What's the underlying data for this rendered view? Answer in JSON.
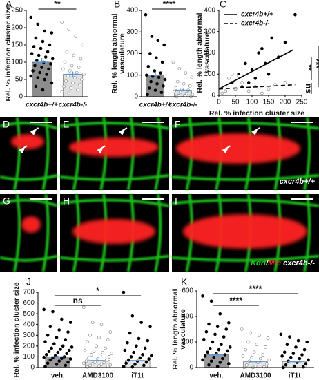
{
  "chart_data": [
    {
      "type": "bar",
      "panel": "A",
      "ylabel": [
        "Rel. % infection cluster size"
      ],
      "categories": [
        "cxcr4b+/+",
        "cxcr4b-/-"
      ],
      "values": [
        100,
        65
      ],
      "errors": [
        12,
        8
      ],
      "colors": [
        "#8c8c8c",
        "#e0e0e0"
      ],
      "point_fills": [
        "#000000",
        "#ffffff"
      ],
      "points": [
        [
          230,
          210,
          190,
          185,
          170,
          160,
          150,
          145,
          140,
          130,
          125,
          120,
          115,
          110,
          105,
          100,
          95,
          90,
          85,
          80,
          75,
          70,
          65,
          60,
          55,
          50,
          40,
          30,
          20
        ],
        [
          215,
          195,
          175,
          150,
          130,
          120,
          110,
          100,
          90,
          85,
          80,
          75,
          70,
          65,
          60,
          55,
          50,
          45,
          40,
          35,
          30,
          25,
          20,
          15,
          10
        ]
      ],
      "ylim": [
        0,
        250
      ],
      "yticks": [
        0,
        50,
        100,
        150,
        200,
        250
      ],
      "annotations": [
        {
          "text": "**",
          "between": [
            0,
            1
          ]
        }
      ]
    },
    {
      "type": "bar",
      "panel": "B",
      "ylabel": [
        "Rel. % length abnormal",
        "vasculature"
      ],
      "categories": [
        "cxcr4b+/+",
        "cxcr4b-/-"
      ],
      "values": [
        100,
        30
      ],
      "errors": [
        15,
        5
      ],
      "colors": [
        "#8c8c8c",
        "#e0e0e0"
      ],
      "point_fills": [
        "#000000",
        "#ffffff"
      ],
      "points": [
        [
          380,
          280,
          260,
          240,
          200,
          180,
          160,
          140,
          120,
          110,
          100,
          95,
          90,
          80,
          70,
          60,
          50,
          40,
          30,
          20,
          10
        ],
        [
          160,
          130,
          110,
          90,
          70,
          60,
          50,
          40,
          35,
          30,
          25,
          20,
          15,
          10,
          5,
          5,
          0,
          0
        ]
      ],
      "ylim": [
        0,
        400
      ],
      "yticks": [
        0,
        100,
        200,
        300,
        400
      ],
      "annotations": [
        {
          "text": "****",
          "between": [
            0,
            1
          ]
        }
      ]
    },
    {
      "type": "scatter",
      "panel": "C",
      "ylabel": [
        "Rel. % length abnormal",
        "vasculature"
      ],
      "xlabel": "Rel. % infection cluster size",
      "legend": "upper left",
      "series": [
        {
          "name": "cxcr4b+/+",
          "color": "#000000",
          "fill": "#000000",
          "dash": false,
          "x": [
            20,
            40,
            60,
            80,
            100,
            120,
            140,
            160,
            180,
            200,
            230,
            70,
            110,
            90,
            150,
            130,
            50
          ],
          "values": [
            20,
            60,
            100,
            150,
            120,
            200,
            150,
            270,
            180,
            250,
            380,
            40,
            80,
            60,
            100,
            220,
            30
          ],
          "fit": {
            "x": [
              0,
              225
            ],
            "y": [
              30,
              215
            ]
          }
        },
        {
          "name": "cxcr4b-/-",
          "color": "#000000",
          "fill": "#ffffff",
          "dash": true,
          "x": [
            10,
            30,
            50,
            70,
            90,
            110,
            130,
            150,
            170,
            200,
            60,
            40,
            20
          ],
          "values": [
            10,
            80,
            30,
            60,
            20,
            40,
            10,
            30,
            50,
            60,
            90,
            100,
            20
          ],
          "fit": {
            "x": [
              0,
              230
            ],
            "y": [
              30,
              50
            ]
          }
        }
      ],
      "xlim": [
        0,
        250
      ],
      "xticks": [
        0,
        50,
        100,
        150,
        200,
        250
      ],
      "ylim": [
        0,
        400
      ],
      "yticks": [
        0,
        100,
        200,
        300,
        400
      ],
      "annotations": [
        {
          "text": "**"
        },
        {
          "text": "***"
        },
        {
          "text": "ns"
        }
      ]
    },
    {
      "type": "bar",
      "panel": "J",
      "ylabel": [
        "Rel. % infection cluster size"
      ],
      "categories": [
        "veh.",
        "AMD3100",
        "iT1t"
      ],
      "values": [
        100,
        65,
        65
      ],
      "errors": [
        10,
        8,
        8
      ],
      "colors": [
        "#9a9a9a",
        "#e6e6e6",
        "#e6e6e6"
      ],
      "point_fills": [
        "#000000",
        "#ffffff",
        "#000000"
      ],
      "points": [
        [
          540,
          520,
          450,
          420,
          380,
          350,
          330,
          300,
          280,
          260,
          240,
          220,
          200,
          190,
          180,
          170,
          160,
          150,
          140,
          130,
          120,
          110,
          100,
          95,
          90,
          85,
          80,
          70,
          60,
          50,
          40,
          30,
          20,
          10
        ],
        [
          560,
          420,
          400,
          330,
          300,
          280,
          260,
          240,
          200,
          180,
          160,
          150,
          140,
          130,
          120,
          110,
          100,
          90,
          80,
          70,
          60,
          50,
          45,
          40,
          35,
          30,
          25,
          20,
          15,
          10,
          5
        ],
        [
          700,
          480,
          420,
          380,
          320,
          270,
          250,
          230,
          200,
          180,
          160,
          140,
          120,
          110,
          100,
          90,
          80,
          70,
          60,
          50,
          40,
          30,
          20,
          10,
          5
        ]
      ],
      "ylim": [
        0,
        700
      ],
      "yticks": [
        0,
        100,
        200,
        300,
        400,
        500,
        600,
        700
      ],
      "annotations": [
        {
          "text": "ns",
          "between": [
            0,
            1
          ]
        },
        {
          "text": "*",
          "between": [
            0,
            2
          ]
        }
      ]
    },
    {
      "type": "bar",
      "panel": "K",
      "ylabel": [
        "Rel. % length abnormal",
        "vasculature"
      ],
      "categories": [
        "veh.",
        "AMD3100",
        "iT1t"
      ],
      "values": [
        100,
        45,
        45
      ],
      "errors": [
        10,
        5,
        5
      ],
      "colors": [
        "#9a9a9a",
        "#e6e6e6",
        "#e6e6e6"
      ],
      "point_fills": [
        "#000000",
        "#ffffff",
        "#000000"
      ],
      "points": [
        [
          560,
          520,
          420,
          350,
          340,
          320,
          300,
          280,
          260,
          240,
          220,
          200,
          180,
          160,
          150,
          140,
          130,
          120,
          110,
          100,
          90,
          80,
          70,
          60,
          50,
          40,
          30,
          20,
          10
        ],
        [
          300,
          270,
          250,
          230,
          200,
          180,
          160,
          140,
          120,
          100,
          90,
          80,
          70,
          60,
          50,
          40,
          30,
          20,
          10,
          5,
          0,
          0
        ],
        [
          260,
          240,
          210,
          200,
          180,
          160,
          140,
          120,
          110,
          100,
          90,
          80,
          70,
          60,
          50,
          40,
          30,
          20,
          10,
          5,
          0
        ]
      ],
      "ylim": [
        0,
        600
      ],
      "yticks": [
        0,
        200,
        400,
        600
      ],
      "annotations": [
        {
          "text": "****",
          "between": [
            0,
            1
          ]
        },
        {
          "text": "****",
          "between": [
            0,
            2
          ]
        }
      ]
    }
  ],
  "image_panels": [
    {
      "panel": "D"
    },
    {
      "panel": "E"
    },
    {
      "panel": "F",
      "caption": [
        {
          "text": "cxcr4b+/+",
          "color": "#ffffff"
        }
      ]
    },
    {
      "panel": "G"
    },
    {
      "panel": "H"
    },
    {
      "panel": "I",
      "caption": [
        {
          "text": "Kdrl",
          "color": "#22cc22"
        },
        {
          "text": "/",
          "color": "#ffffff"
        },
        {
          "text": "Mm",
          "color": "#ff2a2a"
        },
        {
          "text": " cxcr4b-/-",
          "color": "#ffffff"
        }
      ]
    }
  ]
}
